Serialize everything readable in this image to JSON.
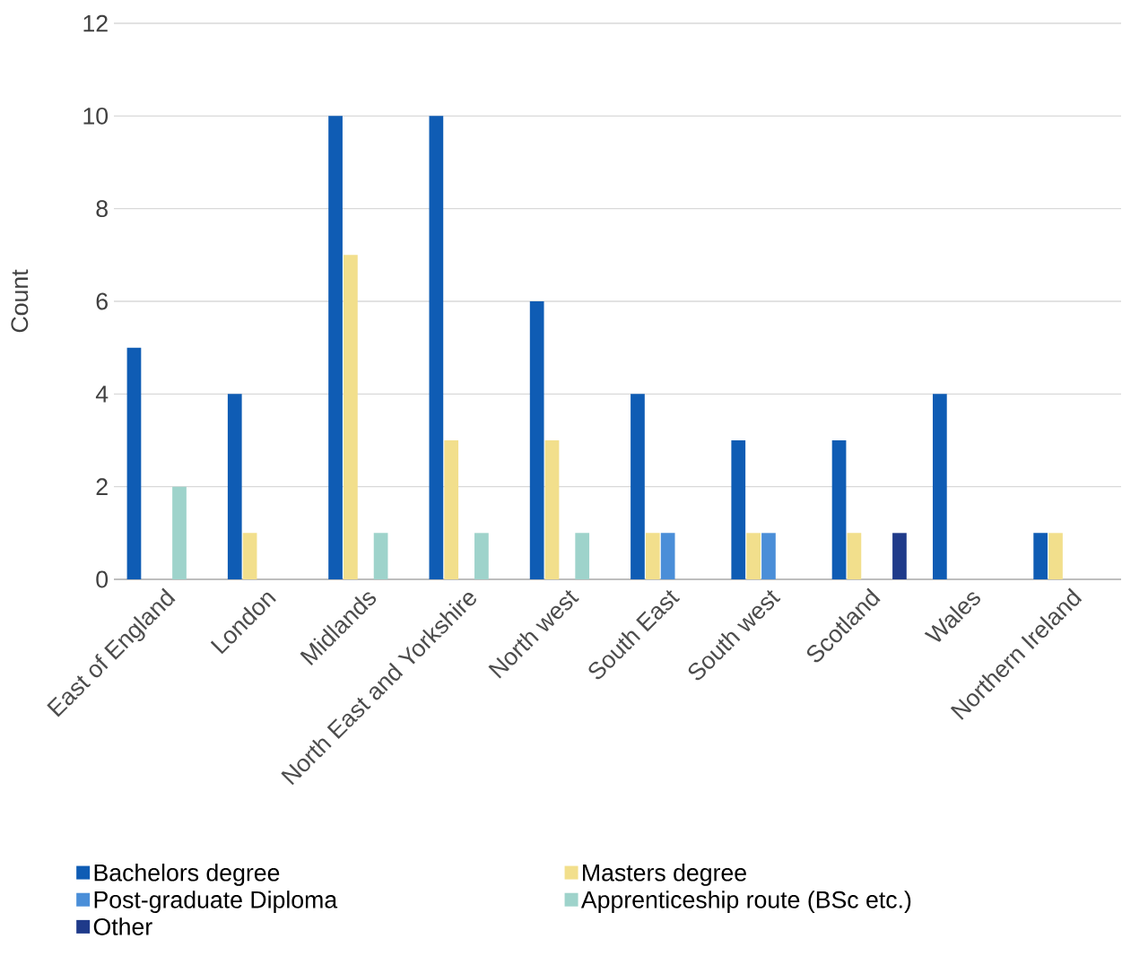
{
  "chart_data": {
    "type": "bar",
    "ylabel": "Count",
    "categories": [
      "East of England",
      "London",
      "Midlands",
      "North East and Yorkshire",
      "North west",
      "South East",
      "South west",
      "Scotland",
      "Wales",
      "Northern Ireland"
    ],
    "series": [
      {
        "name": "Bachelors degree",
        "color": "#0f5cb4",
        "values": [
          5,
          4,
          10,
          10,
          6,
          4,
          3,
          3,
          4,
          1
        ]
      },
      {
        "name": "Masters degree",
        "color": "#f2df8c",
        "values": [
          0,
          1,
          7,
          3,
          3,
          1,
          1,
          1,
          0,
          1
        ]
      },
      {
        "name": "Post-graduate Diploma",
        "color": "#4a8ed8",
        "values": [
          0,
          0,
          0,
          0,
          0,
          1,
          1,
          0,
          0,
          0
        ]
      },
      {
        "name": "Apprenticeship route (BSc etc.)",
        "color": "#9ed3cb",
        "values": [
          2,
          0,
          1,
          1,
          1,
          0,
          0,
          0,
          0,
          0
        ]
      },
      {
        "name": "Other",
        "color": "#1f3a8a",
        "values": [
          0,
          0,
          0,
          0,
          0,
          0,
          0,
          1,
          0,
          0
        ]
      }
    ],
    "ylim": [
      0,
      12
    ],
    "yticks": [
      0,
      2,
      4,
      6,
      8,
      10,
      12
    ],
    "grid": "y",
    "legend": "bottom"
  }
}
